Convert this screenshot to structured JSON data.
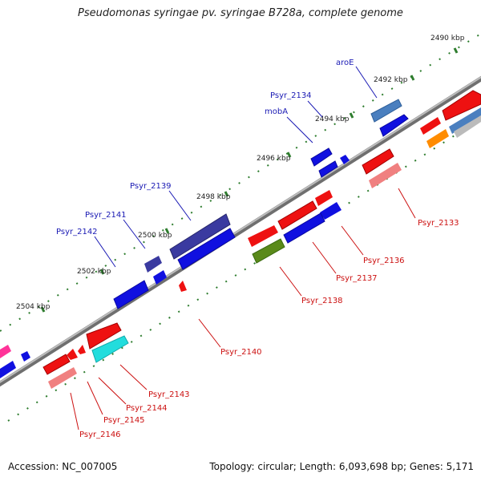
{
  "title": "Pseudomonas syringae pv. syringae B728a, complete genome",
  "footer": {
    "accession": "Accession: NC_007005",
    "summary": "Topology: circular; Length: 6,093,698 bp; Genes: 5,171"
  },
  "colors": {
    "forward_label": "#1a1ab4",
    "reverse_label": "#cc1111",
    "backbone": "#8c8c8c",
    "tick": "#2e7d2e"
  },
  "ticks": [
    "2490 kbp",
    "2492 kbp",
    "2494 kbp",
    "2496 kbp",
    "2498 kbp",
    "2500 kbp",
    "2502 kbp",
    "2504 kbp"
  ],
  "forward_labels": [
    "aroE",
    "Psyr_2134",
    "mobA",
    "Psyr_2139",
    "Psyr_2141",
    "Psyr_2142"
  ],
  "reverse_labels": [
    "Psyr_2133",
    "Psyr_2136",
    "Psyr_2137",
    "Psyr_2138",
    "Psyr_2140",
    "Psyr_2143",
    "Psyr_2144",
    "Psyr_2145",
    "Psyr_2146"
  ]
}
